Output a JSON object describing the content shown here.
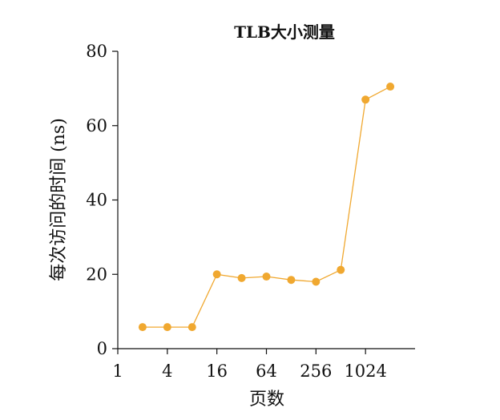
{
  "chart_data": {
    "type": "line",
    "title": "TLB大小测量",
    "xlabel": "页数",
    "ylabel": "每次访问的时间 (ns)",
    "x_scale": "log2",
    "xlim": [
      1,
      4096
    ],
    "ylim": [
      0,
      80
    ],
    "x_ticks": [
      1,
      4,
      16,
      64,
      256,
      1024
    ],
    "x_tick_labels": [
      "1",
      "4",
      "16",
      "64",
      "256",
      "1024"
    ],
    "y_ticks": [
      0,
      20,
      40,
      60,
      80
    ],
    "y_tick_labels": [
      "0",
      "20",
      "40",
      "60",
      "80"
    ],
    "grid": false,
    "series": [
      {
        "x": [
          2,
          4,
          8,
          16,
          32,
          64,
          128,
          256,
          512,
          1024,
          2048
        ],
        "y": [
          5.8,
          5.8,
          5.8,
          20.0,
          19.0,
          19.4,
          18.5,
          18.0,
          21.2,
          67.0,
          70.5
        ],
        "color": "#f0a830"
      }
    ]
  }
}
